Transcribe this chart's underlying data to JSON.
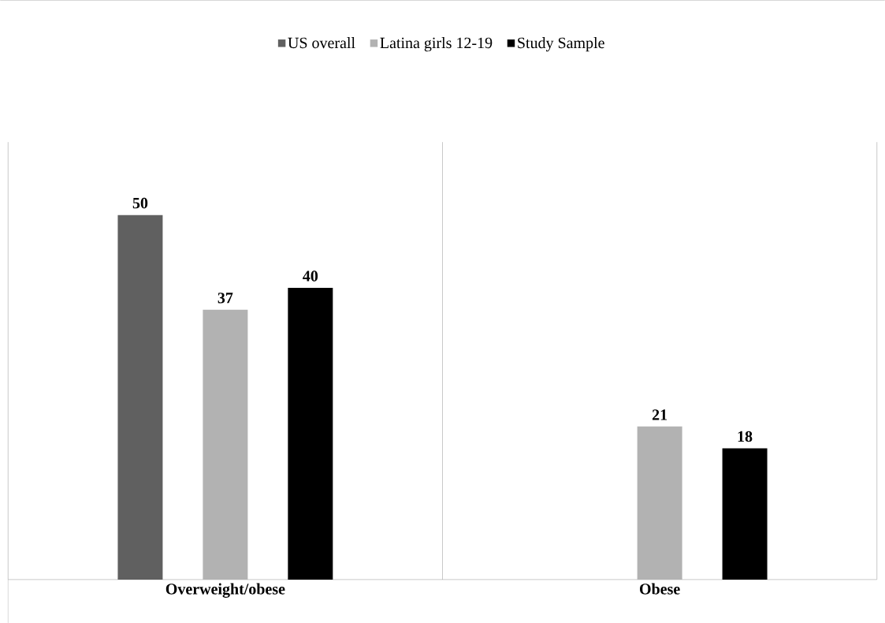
{
  "chart_data": {
    "type": "bar",
    "categories": [
      "Overweight/obese",
      "Obese"
    ],
    "series": [
      {
        "name": "US overall",
        "color": "#606060",
        "values": [
          50,
          null
        ]
      },
      {
        "name": "Latina girls 12-19",
        "color": "#b2b2b2",
        "values": [
          37,
          21
        ]
      },
      {
        "name": "Study Sample",
        "color": "#000000",
        "values": [
          40,
          18
        ]
      }
    ],
    "data_labels": true,
    "legend": "top",
    "grid": "x"
  }
}
